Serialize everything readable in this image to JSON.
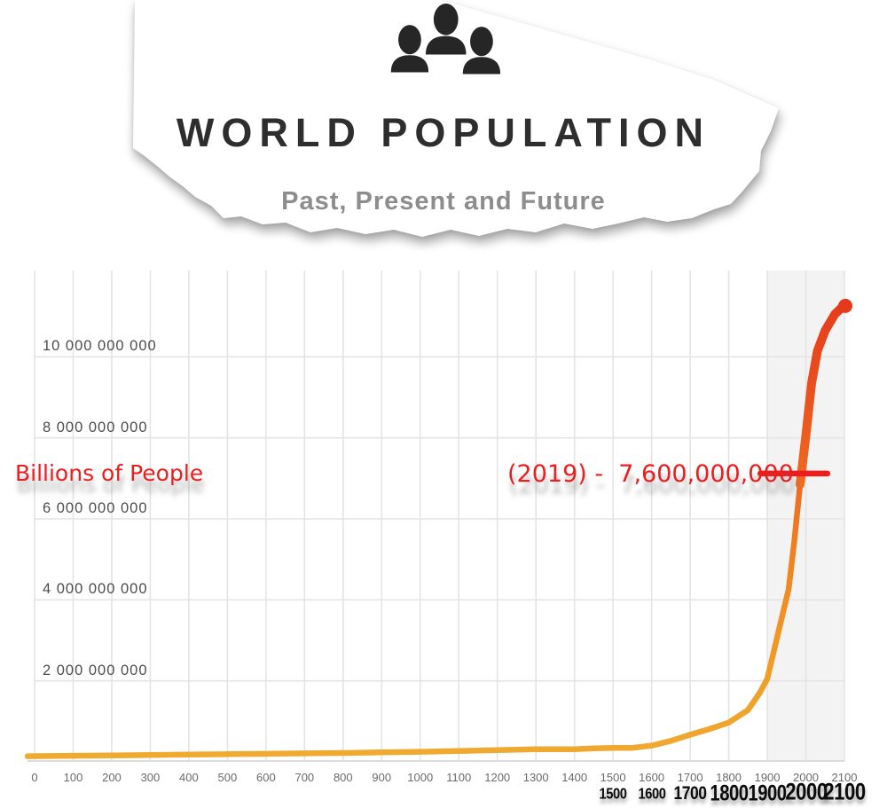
{
  "header": {
    "title": "WORLD POPULATION",
    "subtitle": "Past, Present and Future",
    "icon": "people-group-icon"
  },
  "annotations": {
    "axis_note": "Billions of People",
    "callout": "(2019) -  7,600,000,000",
    "callout_year": 2019,
    "callout_value": 7600000000,
    "accent_color": "#ee1c1c",
    "callout_line": {
      "from_year": 1882,
      "to_year": 2056,
      "at_value_billions": 7.12
    },
    "emphasized_years": [
      {
        "label": "1500",
        "size": 16
      },
      {
        "label": "1600",
        "size": 16
      },
      {
        "label": "1700",
        "size": 19
      },
      {
        "label": "1800",
        "size": 22
      },
      {
        "label": "1900",
        "size": 22
      },
      {
        "label": "2000",
        "size": 24
      },
      {
        "label": "2100",
        "size": 24
      }
    ]
  },
  "chart_data": {
    "type": "line",
    "title": "",
    "xlabel": "",
    "ylabel": "Billions of People",
    "x_range": [
      0,
      2100
    ],
    "y_range_billions": [
      0,
      12
    ],
    "grid": true,
    "grid_color": "#e4e4e4",
    "highlight_region": {
      "from_year": 1900,
      "to_year": 2100,
      "color": "#f3f3f3"
    },
    "x_ticks": [
      "0",
      "100",
      "200",
      "300",
      "400",
      "500",
      "600",
      "700",
      "800",
      "900",
      "1000",
      "1100",
      "1200",
      "1300",
      "1400",
      "1500",
      "1600",
      "1700",
      "1800",
      "1900",
      "2000",
      "2100"
    ],
    "y_ticks": [
      {
        "value_billions": 2,
        "label": "2 000 000 000"
      },
      {
        "value_billions": 4,
        "label": "4 000 000 000"
      },
      {
        "value_billions": 6,
        "label": "6 000 000 000"
      },
      {
        "value_billions": 8,
        "label": "8 000 000 000"
      },
      {
        "value_billions": 10,
        "label": "10 000 000 000"
      }
    ],
    "line_gradient": [
      "#f0ab31",
      "#f09c28",
      "#f08522",
      "#ee671f",
      "#e94b1d",
      "#e5381d"
    ],
    "series": [
      {
        "name": "world-population",
        "points_year_billions": [
          [
            0,
            0.14
          ],
          [
            100,
            0.15
          ],
          [
            200,
            0.16
          ],
          [
            300,
            0.17
          ],
          [
            400,
            0.18
          ],
          [
            500,
            0.19
          ],
          [
            600,
            0.2
          ],
          [
            700,
            0.21
          ],
          [
            800,
            0.22
          ],
          [
            900,
            0.235
          ],
          [
            1000,
            0.25
          ],
          [
            1100,
            0.27
          ],
          [
            1200,
            0.29
          ],
          [
            1300,
            0.31
          ],
          [
            1400,
            0.31
          ],
          [
            1450,
            0.335
          ],
          [
            1500,
            0.345
          ],
          [
            1550,
            0.345
          ],
          [
            1600,
            0.4
          ],
          [
            1650,
            0.52
          ],
          [
            1700,
            0.67
          ],
          [
            1750,
            0.81
          ],
          [
            1800,
            0.97
          ],
          [
            1850,
            1.28
          ],
          [
            1880,
            1.7
          ],
          [
            1900,
            2.05
          ],
          [
            1920,
            2.85
          ],
          [
            1940,
            3.65
          ],
          [
            1955,
            4.25
          ],
          [
            1970,
            5.45
          ],
          [
            1985,
            6.85
          ],
          [
            2000,
            8.05
          ],
          [
            2015,
            9.35
          ],
          [
            2030,
            10.15
          ],
          [
            2050,
            10.65
          ],
          [
            2075,
            11.05
          ],
          [
            2100,
            11.28
          ]
        ]
      }
    ]
  }
}
